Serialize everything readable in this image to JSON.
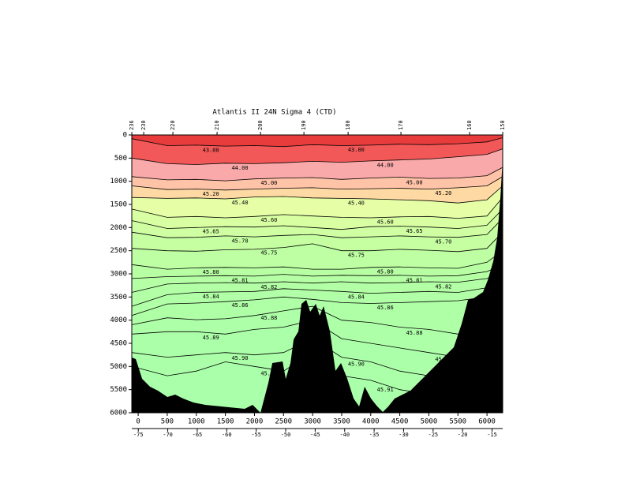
{
  "chart_data": {
    "type": "contour",
    "title": "Atlantis II 24N Sigma 4 (CTD)",
    "xlim": [
      -110,
      6270
    ],
    "xticks": [
      0,
      500,
      1000,
      1500,
      2000,
      2500,
      3000,
      3500,
      4000,
      4500,
      5000,
      5500,
      6000
    ],
    "ylim": [
      0,
      6000
    ],
    "yticks": [
      0,
      500,
      1000,
      1500,
      2000,
      2500,
      3000,
      3500,
      4000,
      4500,
      5000,
      5500,
      6000
    ],
    "x2lim": [
      -76.1,
      -13.2
    ],
    "x2ticks": [
      -75,
      -70,
      -65,
      -60,
      -55,
      -50,
      -45,
      -40,
      -35,
      -30,
      -25,
      -20,
      -15
    ],
    "stations": {
      "x": [
        -109,
        95,
        597,
        1357,
        2104,
        2851,
        3611,
        4520,
        5701,
        6271
      ],
      "labels": [
        "236",
        "230",
        "220",
        "210",
        "200",
        "190",
        "180",
        "170",
        "160",
        "150"
      ]
    },
    "top_color": "#e83c3c",
    "bottom_color": "#aaffaa",
    "contour_x": [
      -110,
      500,
      1000,
      1500,
      2000,
      2500,
      3000,
      3500,
      4000,
      4500,
      5000,
      5500,
      6000,
      6270
    ],
    "contours": [
      {
        "level": 43,
        "label": "43.00",
        "fill": "#f25858",
        "depths": [
          80,
          230,
          220,
          240,
          230,
          250,
          210,
          230,
          220,
          200,
          210,
          190,
          150,
          60
        ]
      },
      {
        "level": 44,
        "label": "44.00",
        "fill": "#f9a9a9",
        "depths": [
          500,
          620,
          640,
          610,
          620,
          600,
          570,
          590,
          560,
          540,
          520,
          470,
          420,
          300
        ]
      },
      {
        "level": 45,
        "label": "45.00",
        "fill": "#ffc3a8",
        "depths": [
          900,
          970,
          960,
          990,
          950,
          930,
          920,
          960,
          930,
          910,
          940,
          930,
          880,
          700
        ]
      },
      {
        "level": 45.2,
        "label": "45.20",
        "fill": "#ffd9a3",
        "depths": [
          1100,
          1180,
          1170,
          1190,
          1170,
          1150,
          1140,
          1170,
          1160,
          1150,
          1170,
          1140,
          1100,
          900
        ]
      },
      {
        "level": 45.4,
        "label": "45.40",
        "fill": "#e6ffa6",
        "depths": [
          1350,
          1370,
          1360,
          1380,
          1340,
          1330,
          1360,
          1370,
          1380,
          1400,
          1420,
          1470,
          1400,
          1100
        ]
      },
      {
        "level": 45.6,
        "label": "45.60",
        "fill": "#d9ffa3",
        "depths": [
          1600,
          1780,
          1760,
          1790,
          1760,
          1720,
          1750,
          1780,
          1790,
          1770,
          1760,
          1800,
          1750,
          1350
        ]
      },
      {
        "level": 45.65,
        "label": "45.65",
        "fill": "#cfffa2",
        "depths": [
          1850,
          2020,
          2000,
          1980,
          1990,
          1960,
          2000,
          2040,
          1980,
          1970,
          1990,
          2020,
          1950,
          1600
        ]
      },
      {
        "level": 45.7,
        "label": "45.70",
        "fill": "#c6ffa2",
        "depths": [
          2100,
          2220,
          2210,
          2180,
          2200,
          2170,
          2150,
          2220,
          2200,
          2180,
          2200,
          2210,
          2150,
          1800
        ]
      },
      {
        "level": 45.75,
        "label": "45.75",
        "fill": "#bdffa2",
        "depths": [
          2450,
          2500,
          2510,
          2480,
          2470,
          2430,
          2350,
          2500,
          2500,
          2470,
          2490,
          2520,
          2450,
          2100
        ]
      },
      {
        "level": 45.8,
        "label": "45.80",
        "fill": "#b8ffa3",
        "depths": [
          2800,
          2900,
          2870,
          2860,
          2870,
          2850,
          2900,
          2900,
          2860,
          2850,
          2870,
          2880,
          2750,
          2500
        ]
      },
      {
        "level": 45.81,
        "label": "45.81",
        "fill": "#b5ffa4",
        "depths": [
          3100,
          3060,
          3050,
          3040,
          3050,
          3010,
          3050,
          3030,
          3040,
          3030,
          3050,
          3040,
          2950,
          2800
        ]
      },
      {
        "level": 45.82,
        "label": "45.82",
        "fill": "#b3ffa5",
        "depths": [
          3400,
          3220,
          3200,
          3190,
          3200,
          3170,
          3200,
          3170,
          3200,
          3190,
          3170,
          3180,
          3100,
          3000
        ]
      },
      {
        "level": 45.84,
        "label": "45.84",
        "fill": "#b1ffa6",
        "depths": [
          3700,
          3450,
          3400,
          3390,
          3380,
          3320,
          3350,
          3380,
          3420,
          3400,
          3380,
          3400,
          3300,
          3200
        ]
      },
      {
        "level": 45.86,
        "label": "45.86",
        "fill": "#afffa7",
        "depths": [
          3900,
          3650,
          3630,
          3600,
          3560,
          3500,
          3550,
          3620,
          3640,
          3620,
          3600,
          3580,
          3500,
          3400
        ]
      },
      {
        "level": 45.88,
        "label": "45.88",
        "fill": "#adffa8",
        "depths": [
          4100,
          3950,
          3990,
          3970,
          3900,
          3800,
          3700,
          4000,
          4050,
          4150,
          4200,
          4300,
          4000,
          3800
        ]
      },
      {
        "level": 45.89,
        "label": "45.89",
        "fill": "#acffa9",
        "depths": [
          4300,
          4250,
          4250,
          4300,
          4200,
          4150,
          4000,
          4400,
          4500,
          4600,
          4700,
          4800,
          4500,
          4200
        ]
      },
      {
        "level": 45.9,
        "label": "45.90",
        "fill": "#abffa9",
        "depths": [
          4700,
          4800,
          4750,
          4700,
          4750,
          4700,
          4400,
          4800,
          4900,
          5100,
          5200,
          5300,
          5000,
          4800
        ]
      },
      {
        "level": 45.91,
        "label": "45.91",
        "fill": "#aaffaa",
        "depths": [
          5000,
          5200,
          5100,
          4900,
          5000,
          5100,
          4700,
          5200,
          5300,
          5500,
          5600,
          5800,
          5500,
          5200
        ]
      }
    ],
    "bathymetry": {
      "color": "#000000",
      "x": [
        -109,
        -41,
        68,
        204,
        339,
        502,
        638,
        774,
        950,
        1154,
        1561,
        1832,
        1968,
        2104,
        2240,
        2308,
        2484,
        2538,
        2620,
        2674,
        2756,
        2810,
        2891,
        2959,
        3054,
        3122,
        3190,
        3298,
        3394,
        3489,
        3597,
        3706,
        3801,
        3896,
        4004,
        4113,
        4208,
        4303,
        4412,
        4683,
        5022,
        5226,
        5430,
        5565,
        5674,
        5769,
        5932,
        6013,
        6108,
        6176,
        6230,
        6271
      ],
      "depth": [
        4807,
        4841,
        5267,
        5438,
        5523,
        5659,
        5608,
        5693,
        5778,
        5829,
        5880,
        5915,
        5829,
        6000,
        5352,
        4926,
        4892,
        5267,
        4926,
        4415,
        4244,
        3648,
        3562,
        3818,
        3648,
        3903,
        3699,
        4244,
        5097,
        4926,
        5267,
        5693,
        5863,
        5438,
        5693,
        5863,
        5983,
        5863,
        5693,
        5523,
        5097,
        4841,
        4585,
        4074,
        3562,
        3528,
        3392,
        3136,
        2727,
        2216,
        1347,
        494
      ]
    }
  }
}
